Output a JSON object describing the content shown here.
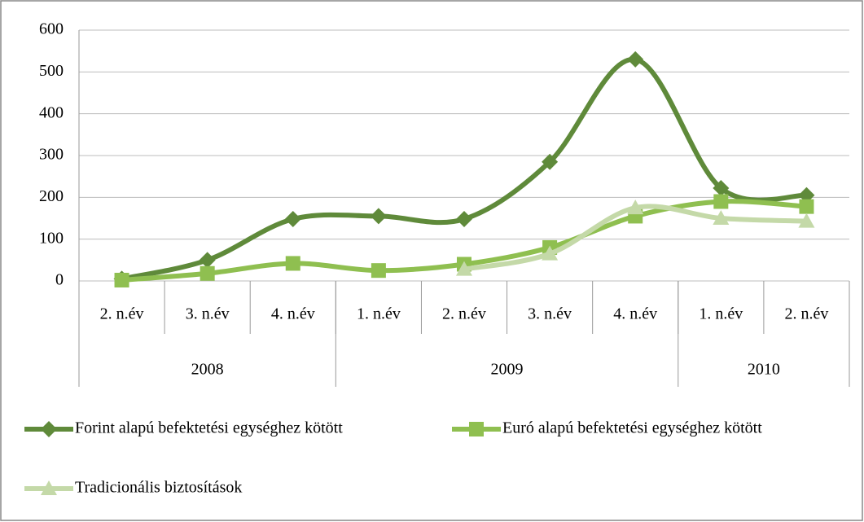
{
  "chart_data": {
    "type": "line",
    "categories": [
      "2. n.év",
      "3. n.év",
      "4. n.év",
      "1. n.év",
      "2. n.év",
      "3. n.év",
      "4. n.év",
      "1. n.év",
      "2. n.év"
    ],
    "category_groups": [
      {
        "label": "2008",
        "span": 3
      },
      {
        "label": "2009",
        "span": 4
      },
      {
        "label": "2010",
        "span": 2
      }
    ],
    "series": [
      {
        "name": "Forint alapú befektetési egységhez kötött",
        "color": "#5f8a3a",
        "marker": "diamond",
        "values": [
          5,
          50,
          148,
          155,
          148,
          285,
          530,
          222,
          205
        ]
      },
      {
        "name": "Euró alapú befektetési egységhez kötött",
        "color": "#8fbf50",
        "marker": "square",
        "values": [
          2,
          18,
          42,
          25,
          40,
          80,
          155,
          190,
          178
        ]
      },
      {
        "name": "Tradicionális biztosítások",
        "color": "#c4d9a8",
        "marker": "triangle",
        "values": [
          null,
          null,
          null,
          null,
          28,
          65,
          175,
          150,
          143
        ]
      }
    ],
    "ylim": [
      0,
      600
    ],
    "yticks": [
      0,
      100,
      200,
      300,
      400,
      500,
      600
    ],
    "grid": true,
    "smooth": true,
    "legend": "bottom"
  }
}
